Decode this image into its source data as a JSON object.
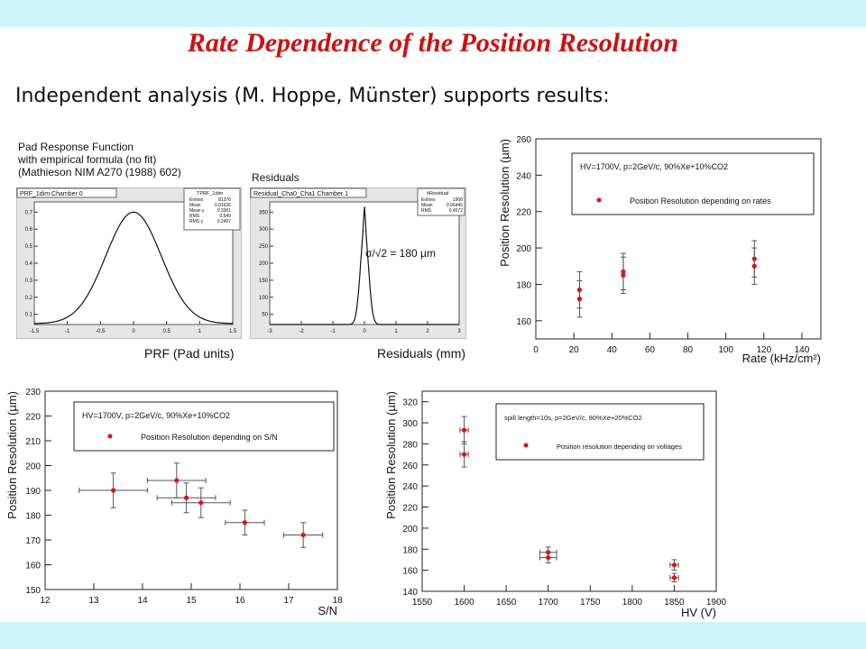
{
  "slide": {
    "title": "Rate Dependence of the Position Resolution",
    "subtitle": "Independent analysis (M. Hoppe, Münster) supports results:",
    "colors": {
      "title": "#cc1111",
      "band": "#ccf6fb",
      "marker": "#e01010",
      "error_bar": "#555555"
    }
  },
  "thumbnails": {
    "prf": {
      "caption_lines": [
        "Pad Response Function",
        "with empirical formula (no fit)",
        "(Mathieson NIM A270 (1988) 602)"
      ],
      "panel_title": "PRF_1dim Chamber 0",
      "stats_title": "TPRF_1dim",
      "stats": [
        [
          "Entries",
          "81376"
        ],
        [
          "Mean",
          "0.01636"
        ],
        [
          "Mean y",
          "0.3361"
        ],
        [
          "RMS",
          "0.649"
        ],
        [
          "RMS y",
          "0.2497"
        ]
      ],
      "x_ticks": [
        "-1.5",
        "-1",
        "-0.5",
        "0",
        "0.5",
        "1",
        "1.5"
      ],
      "y_ticks": [
        "0.1",
        "0.2",
        "0.3",
        "0.4",
        "0.5",
        "0.6",
        "0.7"
      ],
      "axis_caption": "PRF (Pad units)"
    },
    "residuals": {
      "caption": "Residuals",
      "panel_title": "Residual_Cha0_Cha1 Chamber 1",
      "stats_title": "hResidual",
      "stats": [
        [
          "Entries",
          "1908"
        ],
        [
          "Mean",
          "0.06446"
        ],
        [
          "RMS",
          "0.4572"
        ]
      ],
      "x_ticks": [
        "-3",
        "-2",
        "-1",
        "0",
        "1",
        "2",
        "3"
      ],
      "y_ticks": [
        "50",
        "100",
        "150",
        "200",
        "250",
        "300",
        "350"
      ],
      "annotation": "σ/√2 = 180 µm",
      "axis_caption": "Residuals (mm)"
    }
  },
  "chart_data": [
    {
      "type": "scatter",
      "title": "",
      "xlabel": "Rate (kHz/cm²)",
      "ylabel": "Position Resolution (µm)",
      "xlim": [
        0,
        150
      ],
      "ylim": [
        150,
        260
      ],
      "x_ticks": [
        0,
        20,
        40,
        60,
        80,
        100,
        120,
        140
      ],
      "y_ticks": [
        160,
        180,
        200,
        220,
        240,
        260
      ],
      "legend_header": "HV=1700V, p=2GeV/c, 90%Xe+10%CO2",
      "series": [
        {
          "name": "Position Resolution depending on rates",
          "points": [
            {
              "x": 23,
              "y": 177,
              "yerr": 10
            },
            {
              "x": 23,
              "y": 172,
              "yerr": 10
            },
            {
              "x": 46,
              "y": 187,
              "yerr": 10
            },
            {
              "x": 46,
              "y": 185,
              "yerr": 10
            },
            {
              "x": 115,
              "y": 194,
              "yerr": 10
            },
            {
              "x": 115,
              "y": 190,
              "yerr": 10
            }
          ]
        }
      ]
    },
    {
      "type": "scatter",
      "title": "",
      "xlabel": "S/N",
      "ylabel": "Position Resolution (µm)",
      "xlim": [
        12,
        18
      ],
      "ylim": [
        150,
        230
      ],
      "x_ticks": [
        12,
        13,
        14,
        15,
        16,
        17,
        18
      ],
      "y_ticks": [
        150,
        160,
        170,
        180,
        190,
        200,
        210,
        220,
        230
      ],
      "legend_header": "HV=1700V, p=2GeV/c, 90%Xe+10%CO2",
      "series": [
        {
          "name": "Position Resolution depending on S/N",
          "points": [
            {
              "x": 13.4,
              "y": 190,
              "xerr": 0.7,
              "yerr": 7
            },
            {
              "x": 14.7,
              "y": 194,
              "xerr": 0.6,
              "yerr": 7
            },
            {
              "x": 14.9,
              "y": 187,
              "xerr": 0.6,
              "yerr": 6
            },
            {
              "x": 15.2,
              "y": 185,
              "xerr": 0.6,
              "yerr": 6
            },
            {
              "x": 16.1,
              "y": 177,
              "xerr": 0.4,
              "yerr": 5
            },
            {
              "x": 17.3,
              "y": 172,
              "xerr": 0.4,
              "yerr": 5
            }
          ]
        }
      ]
    },
    {
      "type": "scatter",
      "title": "",
      "xlabel": "HV (V)",
      "ylabel": "Position Resolution (µm)",
      "xlim": [
        1550,
        1900
      ],
      "ylim": [
        140,
        330
      ],
      "x_ticks": [
        1550,
        1600,
        1650,
        1700,
        1750,
        1800,
        1850,
        1900
      ],
      "y_ticks": [
        140,
        160,
        180,
        200,
        220,
        240,
        260,
        280,
        300,
        320
      ],
      "legend_header": "spill length=10s, p=2GeV/c, 80%Xe+20%CO2",
      "series": [
        {
          "name": "Position resolution depending on voltages",
          "points": [
            {
              "x": 1600,
              "y": 293,
              "xerr": 5,
              "yerr": 13
            },
            {
              "x": 1600,
              "y": 270,
              "xerr": 5,
              "yerr": 12
            },
            {
              "x": 1700,
              "y": 177,
              "xerr": 10,
              "yerr": 5
            },
            {
              "x": 1700,
              "y": 172,
              "xerr": 10,
              "yerr": 5
            },
            {
              "x": 1850,
              "y": 165,
              "xerr": 5,
              "yerr": 5
            },
            {
              "x": 1850,
              "y": 153,
              "xerr": 5,
              "yerr": 4
            }
          ]
        }
      ]
    }
  ]
}
